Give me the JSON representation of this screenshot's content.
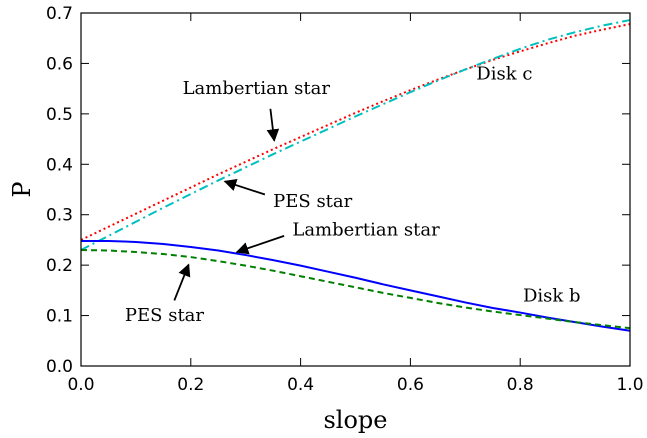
{
  "chart_data": {
    "type": "line",
    "xlabel": "slope",
    "ylabel": "P",
    "xlim": [
      0.0,
      1.0
    ],
    "ylim": [
      0.0,
      0.7
    ],
    "x_ticks": [
      0.0,
      0.2,
      0.4,
      0.6,
      0.8,
      1.0
    ],
    "y_ticks": [
      0.0,
      0.1,
      0.2,
      0.3,
      0.4,
      0.5,
      0.6,
      0.7
    ],
    "x_tick_labels": [
      "0.0",
      "0.2",
      "0.4",
      "0.6",
      "0.8",
      "1.0"
    ],
    "y_tick_labels": [
      "0.0",
      "0.1",
      "0.2",
      "0.3",
      "0.4",
      "0.5",
      "0.6",
      "0.7"
    ],
    "grid": false,
    "x": [
      0.0,
      0.05,
      0.1,
      0.15,
      0.2,
      0.25,
      0.3,
      0.35,
      0.4,
      0.45,
      0.5,
      0.55,
      0.6,
      0.65,
      0.7,
      0.75,
      0.8,
      0.85,
      0.9,
      0.95,
      1.0
    ],
    "series": [
      {
        "id": "disk-c-lambertian",
        "color": "#ff0000",
        "style": "dotted",
        "values": [
          0.25,
          0.276,
          0.302,
          0.328,
          0.354,
          0.38,
          0.405,
          0.43,
          0.454,
          0.478,
          0.502,
          0.525,
          0.547,
          0.568,
          0.588,
          0.607,
          0.624,
          0.64,
          0.655,
          0.667,
          0.678
        ]
      },
      {
        "id": "disk-c-pes",
        "color": "#00bfbf",
        "style": "dashdot",
        "values": [
          0.23,
          0.258,
          0.286,
          0.314,
          0.341,
          0.368,
          0.394,
          0.42,
          0.445,
          0.47,
          0.495,
          0.519,
          0.543,
          0.566,
          0.588,
          0.609,
          0.629,
          0.647,
          0.662,
          0.675,
          0.686
        ]
      },
      {
        "id": "disk-b-lambertian",
        "color": "#0000ff",
        "style": "solid",
        "values": [
          0.248,
          0.248,
          0.246,
          0.242,
          0.236,
          0.229,
          0.22,
          0.21,
          0.199,
          0.187,
          0.175,
          0.162,
          0.15,
          0.138,
          0.126,
          0.115,
          0.106,
          0.096,
          0.087,
          0.078,
          0.07
        ]
      },
      {
        "id": "disk-b-pes",
        "color": "#008000",
        "style": "dashed",
        "values": [
          0.23,
          0.229,
          0.226,
          0.222,
          0.216,
          0.208,
          0.199,
          0.189,
          0.178,
          0.167,
          0.156,
          0.145,
          0.135,
          0.125,
          0.116,
          0.108,
          0.101,
          0.094,
          0.087,
          0.081,
          0.075
        ]
      }
    ],
    "annotations": [
      {
        "id": "disk-c",
        "text": "Disk c",
        "x": 0.72,
        "y": 0.568,
        "arrow": null
      },
      {
        "id": "disk-b",
        "text": "Disk b",
        "x": 0.805,
        "y": 0.128,
        "arrow": null
      },
      {
        "id": "lambertian-c",
        "text": "Lambertian star",
        "x": 0.185,
        "y": 0.539,
        "arrow": {
          "from": [
            0.345,
            0.51
          ],
          "to": [
            0.352,
            0.447
          ]
        }
      },
      {
        "id": "pes-c",
        "text": "PES star",
        "x": 0.35,
        "y": 0.315,
        "arrow": {
          "from": [
            0.335,
            0.34
          ],
          "to": [
            0.262,
            0.366
          ]
        }
      },
      {
        "id": "lambertian-b",
        "text": "Lambertian star",
        "x": 0.385,
        "y": 0.259,
        "arrow": {
          "from": [
            0.37,
            0.258
          ],
          "to": [
            0.284,
            0.226
          ]
        }
      },
      {
        "id": "pes-b",
        "text": "PES star",
        "x": 0.08,
        "y": 0.089,
        "arrow": {
          "from": [
            0.17,
            0.13
          ],
          "to": [
            0.196,
            0.201
          ]
        }
      }
    ]
  }
}
